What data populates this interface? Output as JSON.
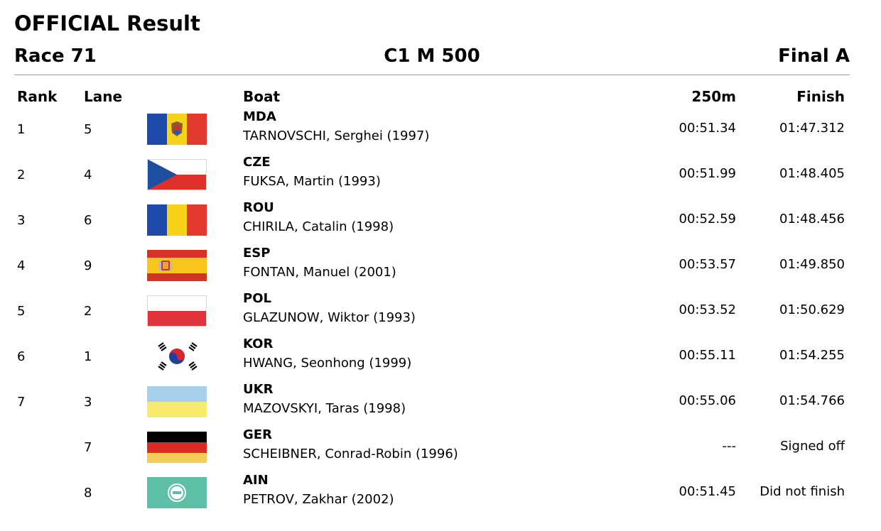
{
  "title": "OFFICIAL Result",
  "race": {
    "number": "Race 71",
    "event": "C1 M 500",
    "phase": "Final A"
  },
  "columns": {
    "rank": "Rank",
    "lane": "Lane",
    "boat": "Boat",
    "split": "250m",
    "finish": "Finish"
  },
  "results": [
    {
      "rank": "1",
      "lane": "5",
      "flag": "mda-flag-icon",
      "nation": "MDA",
      "name": "TARNOVSCHI, Serghei (1997)",
      "split": "00:51.34",
      "finish": "01:47.312"
    },
    {
      "rank": "2",
      "lane": "4",
      "flag": "cze-flag-icon",
      "nation": "CZE",
      "name": "FUKSA, Martin (1993)",
      "split": "00:51.99",
      "finish": "01:48.405"
    },
    {
      "rank": "3",
      "lane": "6",
      "flag": "rou-flag-icon",
      "nation": "ROU",
      "name": "CHIRILA, Catalin (1998)",
      "split": "00:52.59",
      "finish": "01:48.456"
    },
    {
      "rank": "4",
      "lane": "9",
      "flag": "esp-flag-icon",
      "nation": "ESP",
      "name": "FONTAN, Manuel (2001)",
      "split": "00:53.57",
      "finish": "01:49.850"
    },
    {
      "rank": "5",
      "lane": "2",
      "flag": "pol-flag-icon",
      "nation": "POL",
      "name": "GLAZUNOW, Wiktor (1993)",
      "split": "00:53.52",
      "finish": "01:50.629"
    },
    {
      "rank": "6",
      "lane": "1",
      "flag": "kor-flag-icon",
      "nation": "KOR",
      "name": "HWANG, Seonhong (1999)",
      "split": "00:55.11",
      "finish": "01:54.255"
    },
    {
      "rank": "7",
      "lane": "3",
      "flag": "ukr-flag-icon",
      "nation": "UKR",
      "name": "MAZOVSKYI, Taras (1998)",
      "split": "00:55.06",
      "finish": "01:54.766"
    },
    {
      "rank": "",
      "lane": "7",
      "flag": "ger-flag-icon",
      "nation": "GER",
      "name": "SCHEIBNER, Conrad-Robin (1996)",
      "split": "---",
      "finish": "Signed off"
    },
    {
      "rank": "",
      "lane": "8",
      "flag": "ain-flag-icon",
      "nation": "AIN",
      "name": "PETROV, Zakhar (2002)",
      "split": "00:51.45",
      "finish": "Did not finish"
    }
  ],
  "colors": {
    "text": "#000000",
    "rule": "#9a9a9a",
    "background": "#ffffff"
  }
}
